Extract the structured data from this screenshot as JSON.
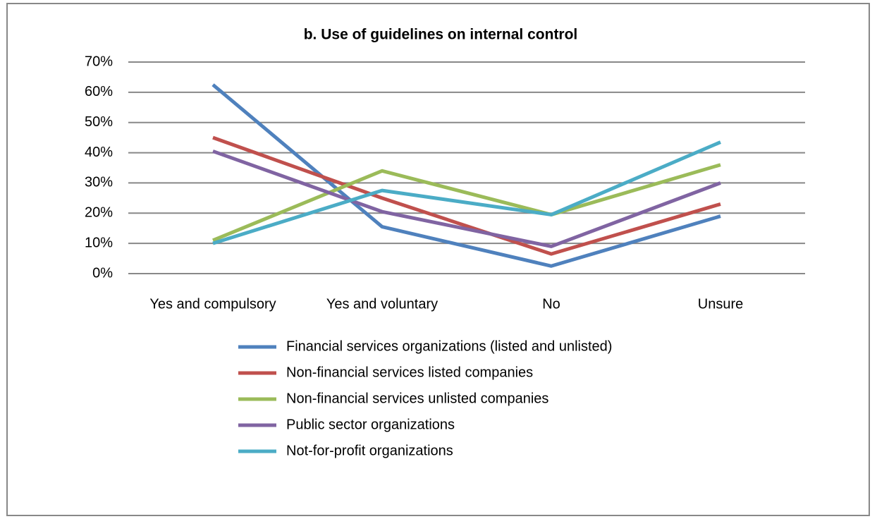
{
  "chart_data": {
    "type": "line",
    "title": "b. Use of guidelines on internal control",
    "categories": [
      "Yes and compulsory",
      "Yes and voluntary",
      "No",
      "Unsure"
    ],
    "series": [
      {
        "name": "Financial services organizations (listed and unlisted)",
        "color": "#4f81bd",
        "values": [
          62.5,
          15.5,
          2.5,
          19
        ]
      },
      {
        "name": "Non-financial services listed companies",
        "color": "#c0504d",
        "values": [
          45,
          25,
          6.5,
          23
        ]
      },
      {
        "name": "Non-financial services unlisted companies",
        "color": "#9bbb59",
        "values": [
          11,
          34,
          19.5,
          36
        ]
      },
      {
        "name": "Public sector organizations",
        "color": "#8064a2",
        "values": [
          40.5,
          20.5,
          9,
          30
        ]
      },
      {
        "name": "Not-for-profit organizations",
        "color": "#4bacc6",
        "values": [
          10,
          27.5,
          19.5,
          43.5
        ]
      }
    ],
    "ylim": [
      0,
      70
    ],
    "yticks": [
      {
        "value": 0,
        "label": "0%"
      },
      {
        "value": 10,
        "label": "10%"
      },
      {
        "value": 20,
        "label": "20%"
      },
      {
        "value": 30,
        "label": "30%"
      },
      {
        "value": 40,
        "label": "40%"
      },
      {
        "value": 50,
        "label": "50%"
      },
      {
        "value": 60,
        "label": "60%"
      },
      {
        "value": 70,
        "label": "70%"
      }
    ],
    "grid": true,
    "legend": "bottom"
  }
}
